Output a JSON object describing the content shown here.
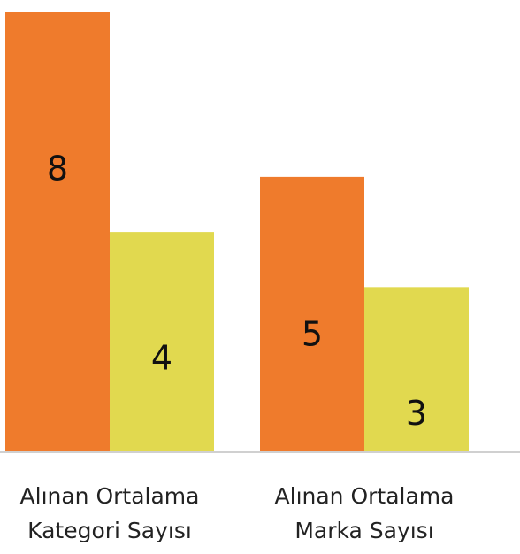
{
  "chart_data": {
    "type": "bar",
    "categories": [
      [
        "Alınan Ortalama",
        "Kategori Sayısı"
      ],
      [
        "Alınan Ortalama",
        "Marka Sayısı"
      ]
    ],
    "series": [
      {
        "values": [
          8,
          5
        ],
        "color": "#EF7B2C"
      },
      {
        "values": [
          4,
          3
        ],
        "color": "#E1D94F"
      }
    ],
    "ylim": [
      0,
      8.1
    ],
    "grid": false,
    "axis_color": "#D0D0D0"
  }
}
